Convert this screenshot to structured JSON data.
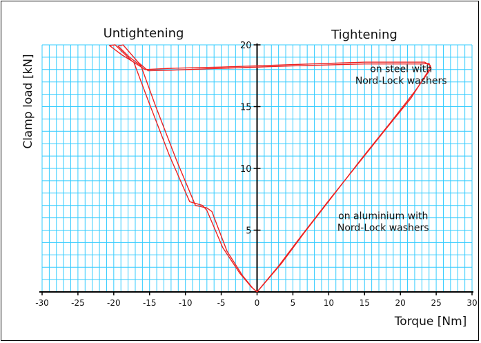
{
  "chart_data": {
    "type": "line",
    "title": "",
    "xlabel": "Torque [Nm]",
    "ylabel": "Clamp load [kN]",
    "xlim": [
      -30,
      30
    ],
    "ylim": [
      0,
      20
    ],
    "x_ticks": [
      -30,
      -25,
      -20,
      -15,
      -10,
      -5,
      0,
      5,
      10,
      15,
      20,
      25,
      30
    ],
    "y_ticks": [
      5,
      10,
      15,
      20
    ],
    "grid": true,
    "grid_minor_x": 1,
    "grid_minor_y": 1,
    "grid_color": "#33ccff",
    "line_color": "#ee2222",
    "region_labels": {
      "left": "Untightening",
      "right": "Tightening"
    },
    "annotations": [
      {
        "text": [
          "on steel with",
          "Nord-Lock washers"
        ],
        "x": 20.1,
        "y": 17.8
      },
      {
        "text": [
          "on aluminium with",
          "Nord-Lock washers"
        ],
        "x": 17.6,
        "y": 5.9
      }
    ],
    "series": [
      {
        "points": [
          [
            0,
            0
          ],
          [
            3,
            2.1
          ],
          [
            6,
            4.4
          ],
          [
            10,
            7.4
          ],
          [
            14,
            10.3
          ],
          [
            18,
            13.2
          ],
          [
            21.5,
            15.7
          ],
          [
            23.8,
            17.8
          ],
          [
            24.2,
            18.3
          ],
          [
            23.4,
            18.6
          ],
          [
            15,
            18.6
          ],
          [
            5,
            18.4
          ],
          [
            -5,
            18.2
          ],
          [
            -12,
            18.1
          ],
          [
            -15.6,
            18.0
          ],
          [
            -17.5,
            18.7
          ],
          [
            -19.8,
            20.0
          ],
          [
            -20.6,
            19.95
          ],
          [
            -18.9,
            19.2
          ],
          [
            -17.2,
            18.6
          ],
          [
            -15.2,
            15.5
          ],
          [
            -12.2,
            11.0
          ],
          [
            -9.4,
            7.3
          ],
          [
            -7.6,
            7.0
          ],
          [
            -7,
            6.6
          ],
          [
            -4.8,
            3.6
          ],
          [
            -2.4,
            1.5
          ],
          [
            -0.8,
            0.4
          ],
          [
            0,
            0
          ]
        ]
      },
      {
        "points": [
          [
            0,
            0
          ],
          [
            3.4,
            2.3
          ],
          [
            6.6,
            4.8
          ],
          [
            10.6,
            7.8
          ],
          [
            14.6,
            10.8
          ],
          [
            18.6,
            13.7
          ],
          [
            22.1,
            16.3
          ],
          [
            24.3,
            18.1
          ],
          [
            24.0,
            18.5
          ],
          [
            23.0,
            18.45
          ],
          [
            15,
            18.45
          ],
          [
            5,
            18.3
          ],
          [
            -5,
            18.1
          ],
          [
            -12,
            17.95
          ],
          [
            -15.2,
            17.9
          ],
          [
            -16.6,
            18.6
          ],
          [
            -18.7,
            20.0
          ],
          [
            -19.4,
            19.9
          ],
          [
            -17.8,
            19.0
          ],
          [
            -16.2,
            18.3
          ],
          [
            -14.2,
            15.1
          ],
          [
            -11.2,
            10.6
          ],
          [
            -8.6,
            7.0
          ],
          [
            -7.0,
            6.8
          ],
          [
            -6.3,
            6.5
          ],
          [
            -4.2,
            3.3
          ],
          [
            -2.0,
            1.3
          ],
          [
            -0.6,
            0.3
          ],
          [
            0,
            0
          ]
        ]
      }
    ]
  }
}
